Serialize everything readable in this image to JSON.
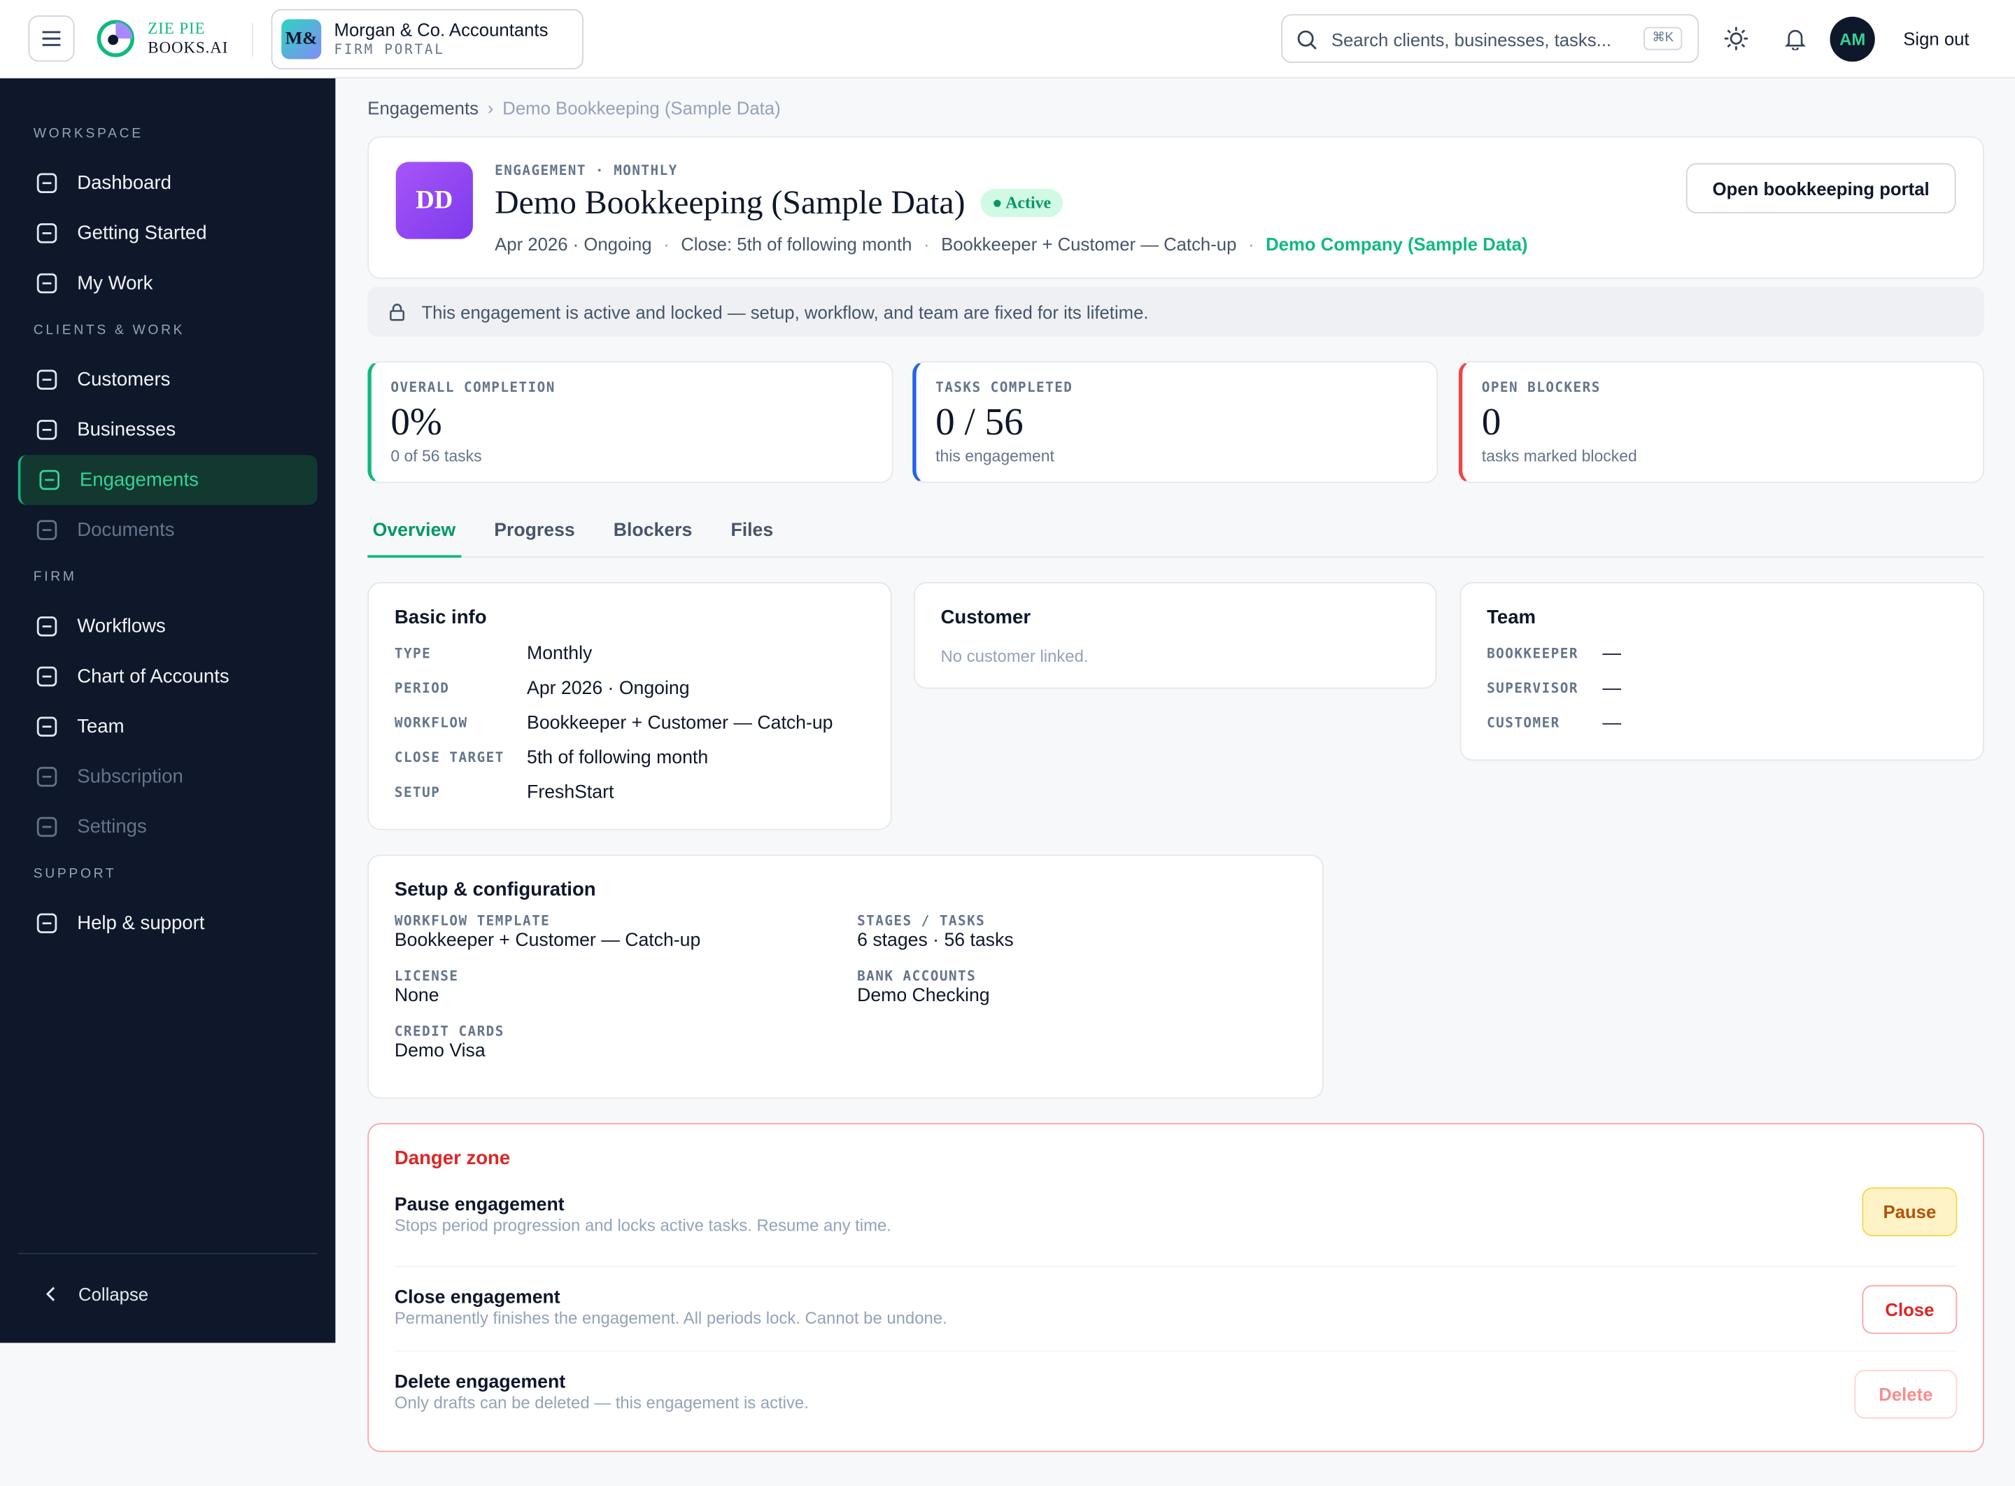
{
  "header": {
    "logo_line1": "ZIE PIE",
    "logo_line2": "BOOKS.AI",
    "firm_initials": "M&",
    "firm_name": "Morgan & Co. Accountants",
    "firm_sub": "FIRM PORTAL",
    "search_placeholder": "Search clients, businesses, tasks...",
    "search_shortcut": "⌘K",
    "avatar": "AM",
    "sign_out": "Sign out"
  },
  "sidebar": {
    "sections": [
      {
        "title": "WORKSPACE",
        "items": [
          {
            "label": "Dashboard"
          },
          {
            "label": "Getting Started"
          },
          {
            "label": "My Work"
          }
        ]
      },
      {
        "title": "CLIENTS & WORK",
        "items": [
          {
            "label": "Customers"
          },
          {
            "label": "Businesses"
          },
          {
            "label": "Engagements",
            "active": true
          },
          {
            "label": "Documents",
            "disabled": true
          }
        ]
      },
      {
        "title": "FIRM",
        "items": [
          {
            "label": "Workflows"
          },
          {
            "label": "Chart of Accounts"
          },
          {
            "label": "Team"
          },
          {
            "label": "Subscription",
            "disabled": true
          },
          {
            "label": "Settings",
            "disabled": true
          }
        ]
      },
      {
        "title": "SUPPORT",
        "items": [
          {
            "label": "Help & support"
          }
        ]
      }
    ],
    "collapse": "Collapse"
  },
  "breadcrumb": [
    "Engagements",
    "Demo Bookkeeping (Sample Data)"
  ],
  "engagement": {
    "initials": "DD",
    "eyebrow": "ENGAGEMENT · MONTHLY",
    "title": "Demo Bookkeeping (Sample Data)",
    "status": "Active",
    "meta": [
      "Apr 2026 · Ongoing",
      "Close: 5th of following month",
      "Bookkeeper + Customer — Catch-up"
    ],
    "company": "Demo Company (Sample Data)",
    "action": "Open bookkeeping portal"
  },
  "lock_notice": "This engagement is active and locked — setup, workflow, and team are fixed for its lifetime.",
  "stats": [
    {
      "label": "OVERALL COMPLETION",
      "value": "0%",
      "sub": "0 of 56 tasks",
      "color": "#10b981"
    },
    {
      "label": "TASKS COMPLETED",
      "value": "0 / 56",
      "sub": "this engagement",
      "color": "#2563eb"
    },
    {
      "label": "OPEN BLOCKERS",
      "value": "0",
      "sub": "tasks marked blocked",
      "color": "#ef4444"
    }
  ],
  "tabs": [
    "Overview",
    "Progress",
    "Blockers",
    "Files"
  ],
  "basic_info": {
    "title": "Basic info",
    "rows": [
      [
        "TYPE",
        "Monthly"
      ],
      [
        "PERIOD",
        "Apr 2026 · Ongoing"
      ],
      [
        "WORKFLOW",
        "Bookkeeper + Customer — Catch-up"
      ],
      [
        "CLOSE TARGET",
        "5th of following month"
      ],
      [
        "SETUP",
        "FreshStart"
      ]
    ]
  },
  "customer": {
    "title": "Customer",
    "empty": "No customer linked."
  },
  "team": {
    "title": "Team",
    "rows": [
      [
        "BOOKKEEPER",
        "—"
      ],
      [
        "SUPERVISOR",
        "—"
      ],
      [
        "CUSTOMER",
        "—"
      ]
    ]
  },
  "setup": {
    "title": "Setup & configuration",
    "fields": [
      [
        "WORKFLOW TEMPLATE",
        "Bookkeeper + Customer — Catch-up"
      ],
      [
        "STAGES / TASKS",
        "6 stages · 56 tasks"
      ],
      [
        "LICENSE",
        "None"
      ],
      [
        "BANK ACCOUNTS",
        "Demo Checking"
      ],
      [
        "CREDIT CARDS",
        "Demo Visa"
      ]
    ]
  },
  "danger": {
    "title": "Danger zone",
    "rows": [
      {
        "title": "Pause engagement",
        "desc": "Stops period progression and locks active tasks. Resume any time.",
        "button": "Pause",
        "variant": "warning"
      },
      {
        "title": "Close engagement",
        "desc": "Permanently finishes the engagement. All periods lock. Cannot be undone.",
        "button": "Close",
        "variant": "danger"
      },
      {
        "title": "Delete engagement",
        "desc": "Only drafts can be deleted — this engagement is active.",
        "button": "Delete",
        "variant": "disabled"
      }
    ]
  }
}
